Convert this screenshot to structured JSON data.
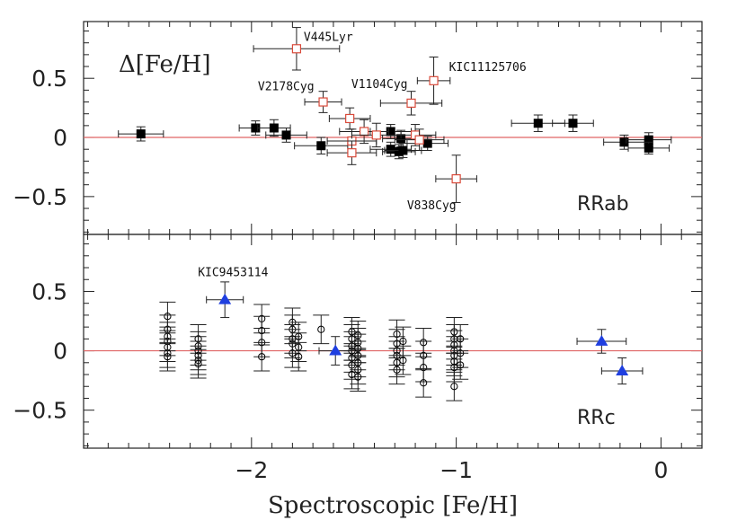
{
  "chart_data": {
    "type": "scatter",
    "xlabel": "Spectroscopic [Fe/H]",
    "xlim": [
      -2.82,
      0.2
    ],
    "x_ticks": [
      -2,
      -1,
      0
    ],
    "x_tick_labels": [
      "−2",
      "−1",
      "0"
    ],
    "reference_line": {
      "y": 0,
      "color": "#e06666"
    },
    "panels": [
      {
        "id": "rrab",
        "label": "RRab",
        "ylabel": "Δ[Fe/H]",
        "ylim": [
          -0.82,
          0.98
        ],
        "y_ticks": [
          0.5,
          0,
          -0.5
        ],
        "y_tick_labels": [
          "0.5",
          "0",
          "−0.5"
        ],
        "series": [
          {
            "name": "Ground-based (filled squares)",
            "marker": "filled-square",
            "color": "#000000",
            "points": [
              {
                "x": -2.54,
                "y": 0.03,
                "xerr": 0.11,
                "yerr": 0.06
              },
              {
                "x": -1.98,
                "y": 0.08,
                "xerr": 0.08,
                "yerr": 0.06
              },
              {
                "x": -1.89,
                "y": 0.08,
                "xerr": 0.08,
                "yerr": 0.07
              },
              {
                "x": -1.83,
                "y": 0.02,
                "xerr": 0.1,
                "yerr": 0.06
              },
              {
                "x": -1.66,
                "y": -0.07,
                "xerr": 0.13,
                "yerr": 0.07
              },
              {
                "x": -1.32,
                "y": 0.05,
                "xerr": 0.1,
                "yerr": 0.06
              },
              {
                "x": -1.32,
                "y": -0.1,
                "xerr": 0.1,
                "yerr": 0.06
              },
              {
                "x": -1.27,
                "y": -0.01,
                "xerr": 0.09,
                "yerr": 0.07
              },
              {
                "x": -1.28,
                "y": -0.12,
                "xerr": 0.08,
                "yerr": 0.06
              },
              {
                "x": -1.26,
                "y": -0.11,
                "xerr": 0.09,
                "yerr": 0.06
              },
              {
                "x": -1.14,
                "y": -0.05,
                "xerr": 0.1,
                "yerr": 0.06
              },
              {
                "x": -0.6,
                "y": 0.12,
                "xerr": 0.13,
                "yerr": 0.07
              },
              {
                "x": -0.43,
                "y": 0.12,
                "xerr": 0.1,
                "yerr": 0.07
              },
              {
                "x": -0.18,
                "y": -0.04,
                "xerr": 0.1,
                "yerr": 0.06
              },
              {
                "x": -0.06,
                "y": -0.02,
                "xerr": 0.11,
                "yerr": 0.06
              },
              {
                "x": -0.06,
                "y": -0.09,
                "xerr": 0.1,
                "yerr": 0.05
              }
            ]
          },
          {
            "name": "Open red squares",
            "marker": "open-square",
            "color": "#d94a3a",
            "points": [
              {
                "x": -1.78,
                "y": 0.75,
                "xerr": 0.21,
                "yerr": 0.18
              },
              {
                "x": -1.65,
                "y": 0.3,
                "xerr": 0.09,
                "yerr": 0.09
              },
              {
                "x": -1.52,
                "y": 0.16,
                "xerr": 0.1,
                "yerr": 0.09
              },
              {
                "x": -1.45,
                "y": 0.05,
                "xerr": 0.12,
                "yerr": 0.1
              },
              {
                "x": -1.51,
                "y": -0.03,
                "xerr": 0.12,
                "yerr": 0.1
              },
              {
                "x": -1.51,
                "y": -0.13,
                "xerr": 0.12,
                "yerr": 0.1
              },
              {
                "x": -1.39,
                "y": 0.02,
                "xerr": 0.12,
                "yerr": 0.1
              },
              {
                "x": -1.22,
                "y": 0.29,
                "xerr": 0.15,
                "yerr": 0.1
              },
              {
                "x": -1.2,
                "y": 0.02,
                "xerr": 0.1,
                "yerr": 0.09
              },
              {
                "x": -1.18,
                "y": -0.02,
                "xerr": 0.12,
                "yerr": 0.09
              },
              {
                "x": -1.11,
                "y": 0.48,
                "xerr": 0.08,
                "yerr": 0.2
              },
              {
                "x": -1.0,
                "y": -0.35,
                "xerr": 0.1,
                "yerr": 0.2
              }
            ]
          }
        ],
        "annotations": [
          {
            "text": "V445Lyr",
            "x": -1.78,
            "y": 0.75
          },
          {
            "text": "V2178Cyg",
            "x": -1.65,
            "y": 0.3
          },
          {
            "text": "V1104Cyg",
            "x": -1.22,
            "y": 0.29
          },
          {
            "text": "KIC11125706",
            "x": -1.11,
            "y": 0.48
          },
          {
            "text": "V838Cyg",
            "x": -1.0,
            "y": -0.35
          }
        ]
      },
      {
        "id": "rrc",
        "label": "RRc",
        "ylabel": "",
        "ylim": [
          -0.82,
          0.98
        ],
        "y_ticks": [
          0.5,
          0,
          -0.5
        ],
        "y_tick_labels": [
          "0.5",
          "0",
          "−0.5"
        ],
        "series": [
          {
            "name": "Open circles",
            "marker": "open-circle",
            "color": "#000000",
            "yerr": 0.12,
            "points": [
              {
                "x": -2.41,
                "y": 0.29
              },
              {
                "x": -2.41,
                "y": 0.18
              },
              {
                "x": -2.41,
                "y": 0.12
              },
              {
                "x": -2.41,
                "y": 0.08
              },
              {
                "x": -2.41,
                "y": 0.03
              },
              {
                "x": -2.41,
                "y": -0.02
              },
              {
                "x": -2.41,
                "y": -0.05
              },
              {
                "x": -2.26,
                "y": 0.1
              },
              {
                "x": -2.26,
                "y": 0.04
              },
              {
                "x": -2.26,
                "y": 0.0
              },
              {
                "x": -2.26,
                "y": -0.04
              },
              {
                "x": -2.26,
                "y": -0.08
              },
              {
                "x": -2.26,
                "y": -0.11
              },
              {
                "x": -1.95,
                "y": 0.27
              },
              {
                "x": -1.95,
                "y": 0.17
              },
              {
                "x": -1.95,
                "y": 0.07
              },
              {
                "x": -1.95,
                "y": -0.05
              },
              {
                "x": -1.8,
                "y": 0.24
              },
              {
                "x": -1.8,
                "y": 0.18
              },
              {
                "x": -1.8,
                "y": 0.1
              },
              {
                "x": -1.8,
                "y": 0.06
              },
              {
                "x": -1.8,
                "y": -0.02
              },
              {
                "x": -1.77,
                "y": 0.12
              },
              {
                "x": -1.77,
                "y": 0.03
              },
              {
                "x": -1.77,
                "y": -0.05
              },
              {
                "x": -1.66,
                "y": 0.18
              },
              {
                "x": -1.51,
                "y": 0.16
              },
              {
                "x": -1.51,
                "y": 0.1
              },
              {
                "x": -1.51,
                "y": 0.04
              },
              {
                "x": -1.51,
                "y": 0.0
              },
              {
                "x": -1.51,
                "y": -0.06
              },
              {
                "x": -1.51,
                "y": -0.12
              },
              {
                "x": -1.51,
                "y": -0.2
              },
              {
                "x": -1.48,
                "y": 0.13
              },
              {
                "x": -1.48,
                "y": 0.07
              },
              {
                "x": -1.48,
                "y": 0.02
              },
              {
                "x": -1.48,
                "y": -0.04
              },
              {
                "x": -1.48,
                "y": -0.1
              },
              {
                "x": -1.48,
                "y": -0.16
              },
              {
                "x": -1.48,
                "y": -0.22
              },
              {
                "x": -1.29,
                "y": 0.14
              },
              {
                "x": -1.29,
                "y": 0.06
              },
              {
                "x": -1.29,
                "y": 0.0
              },
              {
                "x": -1.29,
                "y": -0.04
              },
              {
                "x": -1.29,
                "y": -0.1
              },
              {
                "x": -1.29,
                "y": -0.16
              },
              {
                "x": -1.26,
                "y": 0.08
              },
              {
                "x": -1.26,
                "y": -0.08
              },
              {
                "x": -1.16,
                "y": 0.07
              },
              {
                "x": -1.16,
                "y": -0.04
              },
              {
                "x": -1.16,
                "y": -0.14
              },
              {
                "x": -1.16,
                "y": -0.27
              },
              {
                "x": -1.01,
                "y": 0.16
              },
              {
                "x": -1.01,
                "y": 0.1
              },
              {
                "x": -1.01,
                "y": 0.05
              },
              {
                "x": -1.01,
                "y": 0.0
              },
              {
                "x": -1.01,
                "y": -0.04
              },
              {
                "x": -1.01,
                "y": -0.09
              },
              {
                "x": -1.01,
                "y": -0.14
              },
              {
                "x": -1.01,
                "y": -0.3
              },
              {
                "x": -0.98,
                "y": 0.1
              },
              {
                "x": -0.98,
                "y": -0.02
              },
              {
                "x": -0.98,
                "y": -0.12
              }
            ]
          },
          {
            "name": "Blue triangles",
            "marker": "filled-triangle",
            "color": "#1f3fe0",
            "points": [
              {
                "x": -2.13,
                "y": 0.43,
                "xerr": 0.09,
                "yerr": 0.15
              },
              {
                "x": -1.59,
                "y": 0.0,
                "xerr": 0.08,
                "yerr": 0.12
              },
              {
                "x": -0.29,
                "y": 0.08,
                "xerr": 0.12,
                "yerr": 0.1
              },
              {
                "x": -0.19,
                "y": -0.17,
                "xerr": 0.1,
                "yerr": 0.11
              }
            ]
          }
        ],
        "annotations": [
          {
            "text": "KIC9453114",
            "x": -2.13,
            "y": 0.43
          }
        ]
      }
    ]
  }
}
